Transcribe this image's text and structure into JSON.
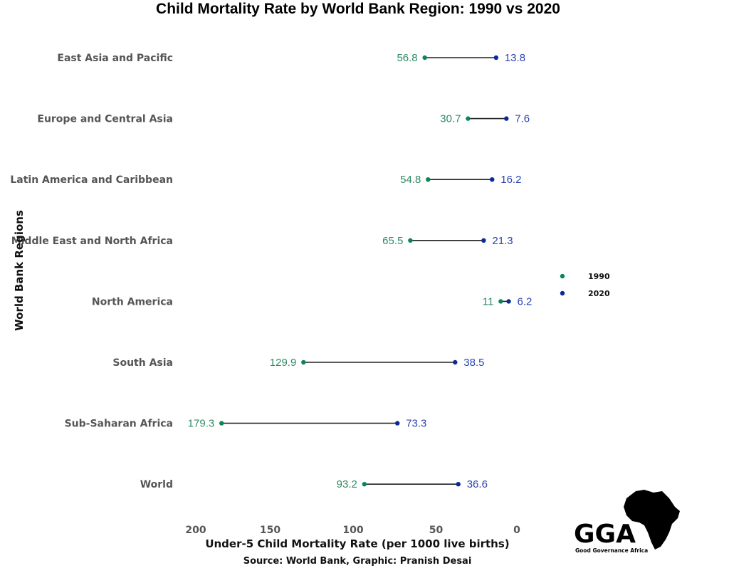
{
  "chart_data": {
    "type": "dumbbell",
    "title": "Child Mortality Rate by World Bank Region: 1990 vs 2020",
    "xlabel": "Under-5 Child Mortality Rate (per 1000 live births)",
    "ylabel": "World Bank Regions",
    "caption": "Source: World Bank, Graphic: Pranish Desai",
    "xlim": [
      200,
      0
    ],
    "x_reversed": true,
    "x_ticks": [
      200,
      150,
      100,
      50,
      0
    ],
    "grid": false,
    "legend_position": "right",
    "categories": [
      "East Asia and Pacific",
      "Europe and Central Asia",
      "Latin America and Caribbean",
      "Middle East and North Africa",
      "North America",
      "South Asia",
      "Sub-Saharan Africa",
      "World"
    ],
    "series": [
      {
        "name": "1990",
        "color": "#0b8457",
        "values": [
          56.8,
          30.7,
          54.8,
          65.5,
          11,
          129.9,
          179.3,
          93.2
        ]
      },
      {
        "name": "2020",
        "color": "#0a2a9a",
        "values": [
          13.8,
          7.6,
          16.2,
          21.3,
          6.2,
          38.5,
          73.3,
          36.6
        ]
      }
    ]
  },
  "logo": {
    "mark": "GGA",
    "name": "Good Governance Africa"
  },
  "colors": {
    "label_1990": "#2e8b63",
    "label_2020": "#2a44b0",
    "segment": "#222222"
  }
}
